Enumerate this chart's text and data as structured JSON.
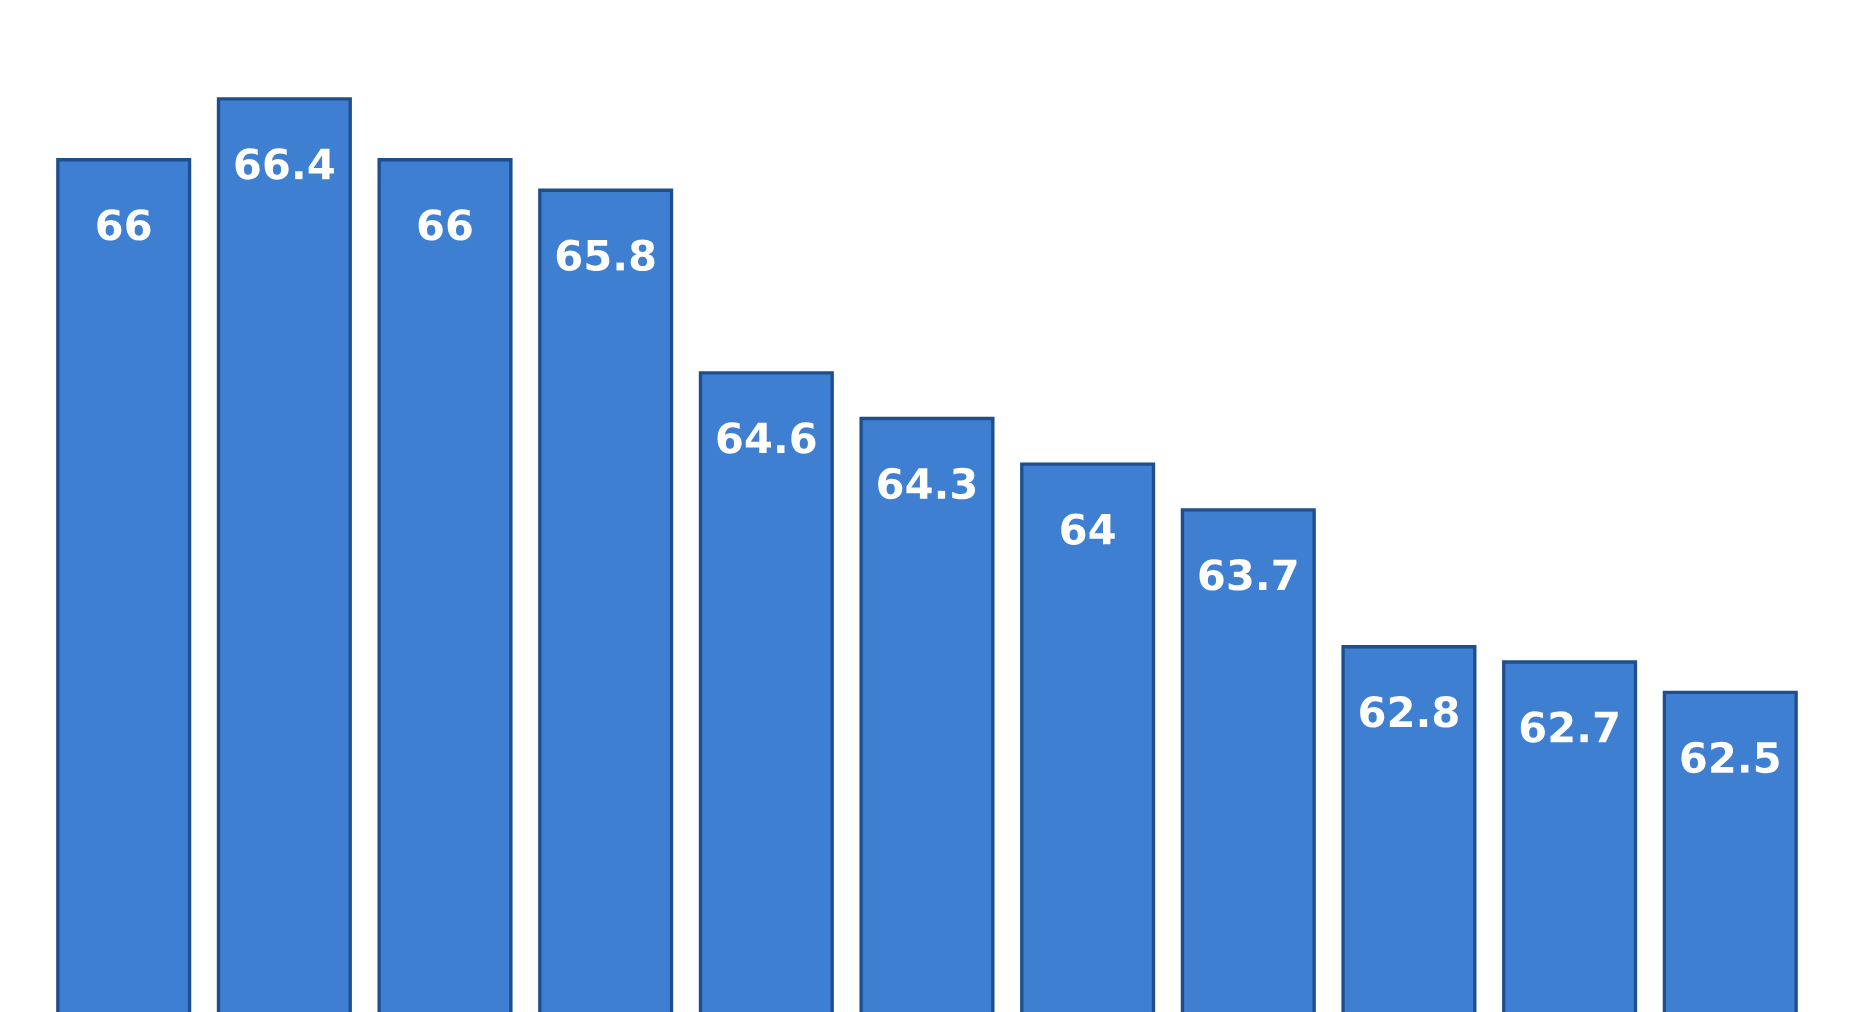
{
  "chart_data": {
    "type": "bar",
    "categories": [
      null,
      null,
      null,
      null,
      null,
      null,
      null,
      null,
      null,
      null,
      null
    ],
    "values": [
      66,
      66.4,
      66,
      65.8,
      64.6,
      64.3,
      64,
      63.7,
      62.8,
      62.7,
      62.5
    ],
    "color": "#3f7fd1",
    "ylim": [
      60.4,
      67.05
    ],
    "data_labels": true,
    "grid": false
  }
}
